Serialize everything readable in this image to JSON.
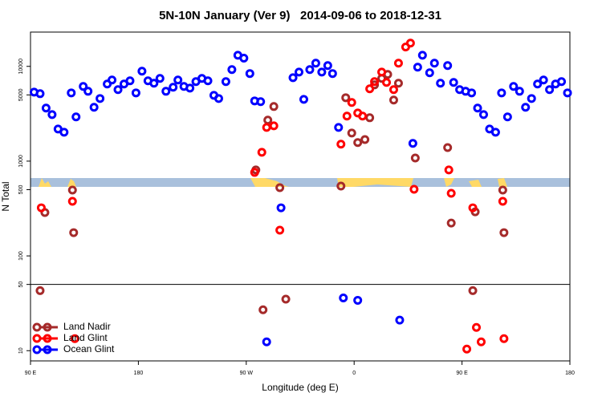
{
  "chart_data": {
    "type": "scatter",
    "title": "5N-10N January (Ver 9)   2014-09-06 to 2018-12-31",
    "xlabel": "Longitude (deg E)",
    "ylabel": "N Total",
    "xlim": [
      90,
      540
    ],
    "xticks": [
      {
        "value": 90,
        "label": "90 E"
      },
      {
        "value": 180,
        "label": "180"
      },
      {
        "value": 270,
        "label": "90 W"
      },
      {
        "value": 360,
        "label": "0"
      },
      {
        "value": 450,
        "label": "90 E"
      },
      {
        "value": 540,
        "label": "180"
      }
    ],
    "ylim": [
      7.8,
      23000
    ],
    "yscale": "log",
    "yticks": [
      10,
      50,
      100,
      500,
      1000,
      5000,
      10000
    ],
    "hline": 50,
    "legend": "lower left",
    "series": [
      {
        "name": "Land Nadir",
        "color": "#a52a2a",
        "x": [
          98,
          102,
          125,
          126,
          278,
          284,
          288,
          293,
          298,
          303,
          349,
          353,
          358,
          363,
          369,
          373,
          377,
          383,
          388,
          393,
          397,
          411,
          438,
          441,
          459,
          461,
          484,
          485
        ],
        "values": [
          43,
          287,
          495,
          176,
          807,
          27,
          2710,
          3770,
          525,
          35,
          546,
          4670,
          1980,
          1570,
          1690,
          2870,
          6380,
          7460,
          8230,
          4410,
          6640,
          1080,
          1390,
          222,
          43,
          292,
          495,
          176
        ]
      },
      {
        "name": "Land Glint",
        "color": "#ff0000",
        "x": [
          99,
          125,
          127,
          277,
          283,
          287,
          293,
          298,
          349,
          354,
          358,
          363,
          367,
          373,
          377,
          383,
          387,
          393,
          397,
          403,
          407,
          410,
          439,
          441,
          454,
          459,
          462,
          466,
          484,
          485
        ],
        "values": [
          322,
          377,
          13.4,
          761,
          1240,
          2270,
          2360,
          187,
          1510,
          2990,
          4160,
          3220,
          2990,
          5790,
          6900,
          8700,
          6770,
          5680,
          10800,
          16000,
          17600,
          505,
          807,
          458,
          10.4,
          322,
          17.6,
          12.4,
          377,
          13.4
        ]
      },
      {
        "name": "Ocean Glint",
        "color": "#0000ff",
        "x": [
          93,
          98,
          103,
          108,
          113,
          118,
          124,
          128,
          134,
          138,
          143,
          148,
          154,
          158,
          163,
          168,
          173,
          178,
          183,
          188,
          193,
          198,
          203,
          209,
          213,
          218,
          223,
          228,
          233,
          238,
          243,
          247,
          253,
          258,
          263,
          268,
          273,
          277,
          282,
          287,
          299,
          309,
          314,
          318,
          323,
          328,
          333,
          338,
          342,
          347,
          351,
          363,
          398,
          409,
          413,
          417,
          423,
          427,
          432,
          438,
          443,
          448,
          453,
          458,
          463,
          468,
          473,
          478,
          483,
          488,
          493,
          498,
          503,
          508,
          513,
          518,
          523,
          528,
          533,
          538
        ],
        "values": [
          5350,
          5150,
          3630,
          3100,
          2180,
          2020,
          5250,
          2930,
          6140,
          5460,
          3700,
          4580,
          6510,
          7180,
          5680,
          6510,
          7040,
          5250,
          8900,
          7040,
          6640,
          7460,
          5460,
          6020,
          7180,
          6140,
          5900,
          6900,
          7460,
          7040,
          4950,
          4580,
          6900,
          9250,
          13100,
          12200,
          8400,
          4320,
          4240,
          12.4,
          322,
          7600,
          8700,
          4490,
          9250,
          10800,
          8700,
          10200,
          8400,
          2270,
          36,
          34,
          21,
          1540,
          9800,
          13100,
          8550,
          10800,
          6640,
          10200,
          6770,
          5680,
          5460,
          5250,
          3630,
          3100,
          2180,
          2020,
          5250,
          2930,
          6140,
          5460,
          3700,
          4580,
          6510,
          7180,
          5680,
          6510,
          6900,
          5250
        ]
      }
    ]
  }
}
